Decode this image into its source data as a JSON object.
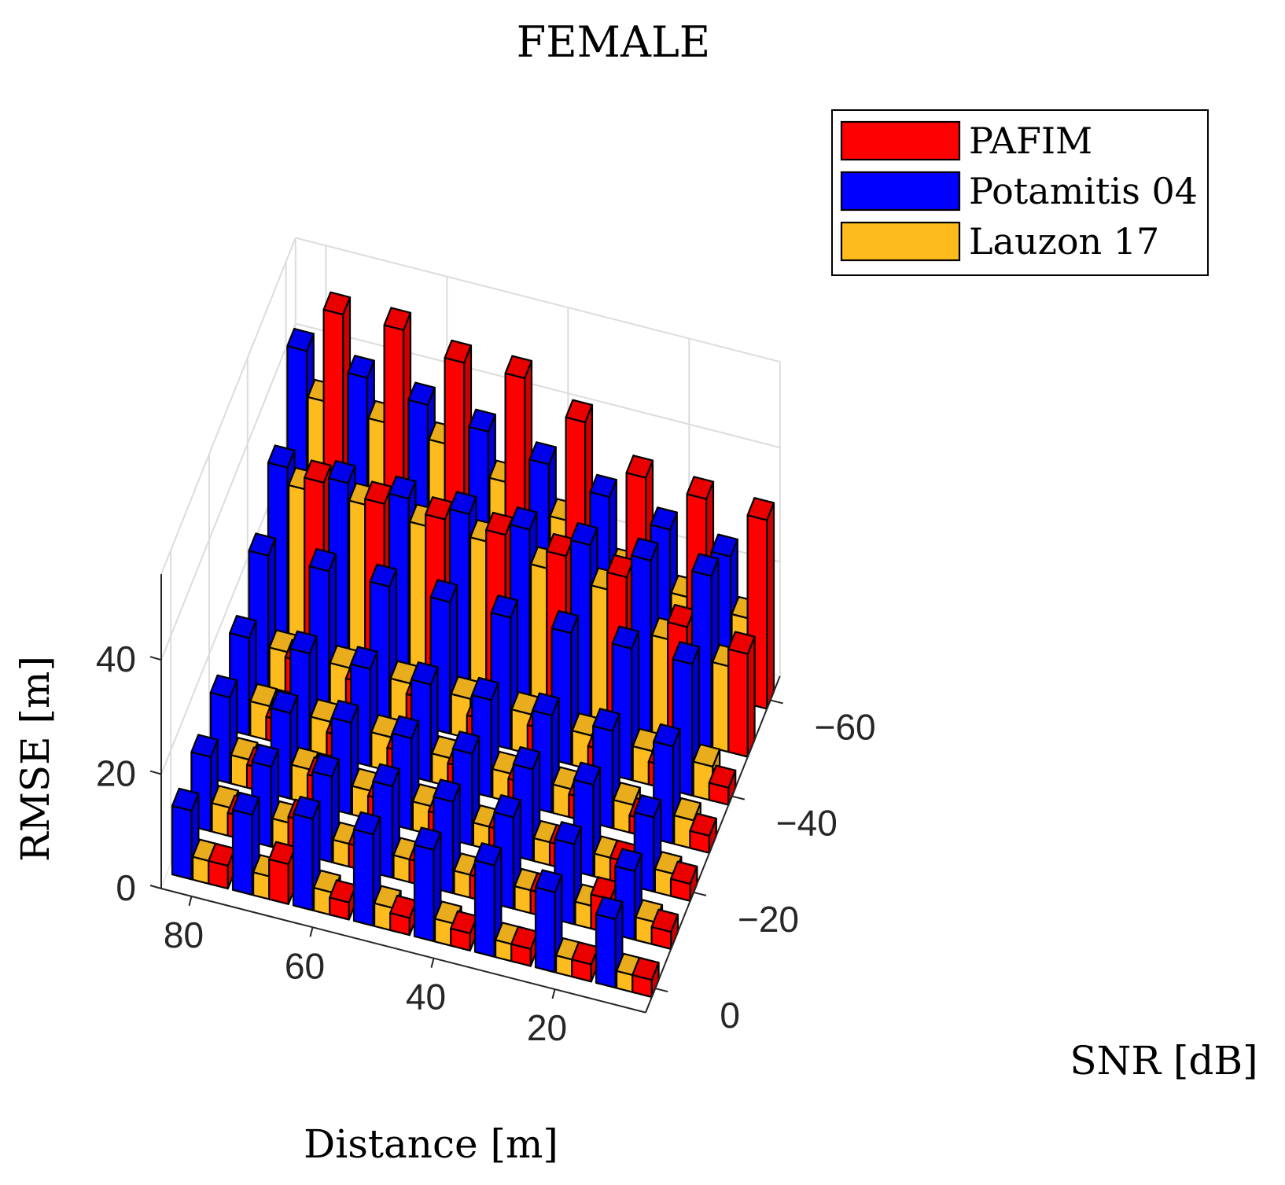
{
  "chart_data": {
    "type": "bar3d",
    "title": "FEMALE",
    "xlabel": "Distance [m]",
    "ylabel": "SNR [dB]",
    "zlabel": "RMSE [m]",
    "distance_ticks": [
      80,
      60,
      40,
      20
    ],
    "snr_ticks": [
      -60,
      -40,
      -20,
      0
    ],
    "rmse_ticks": [
      0,
      20,
      40
    ],
    "zlim": [
      0,
      55
    ],
    "distances": [
      80,
      70,
      60,
      50,
      40,
      30,
      20,
      10
    ],
    "snrs": [
      0,
      -10,
      -20,
      -30,
      -40,
      -50,
      -60
    ],
    "grid": true,
    "legend_position": "top-right",
    "series": [
      {
        "name": "PAFIM",
        "color": "#ff0000",
        "values": [
          [
            4,
            7,
            3,
            3,
            3,
            3,
            3,
            3
          ],
          [
            4,
            6,
            4,
            4,
            4,
            4,
            6,
            3
          ],
          [
            4,
            5,
            4,
            4,
            4,
            4,
            4,
            3
          ],
          [
            4,
            4,
            4,
            4,
            4,
            4,
            3,
            3
          ],
          [
            6,
            5,
            5,
            4,
            5,
            4,
            4,
            3
          ],
          [
            29,
            28,
            28,
            28,
            27,
            26,
            20,
            18
          ],
          [
            50,
            50,
            47,
            47,
            42,
            35,
            34,
            33
          ]
        ]
      },
      {
        "name": "Potamitis 04",
        "color": "#0000ff",
        "values": [
          [
            12,
            14,
            16,
            16,
            16,
            16,
            14,
            12
          ],
          [
            13,
            14,
            15,
            16,
            16,
            16,
            14,
            12
          ],
          [
            15,
            15,
            16,
            16,
            16,
            16,
            16,
            13
          ],
          [
            17,
            17,
            17,
            17,
            17,
            17,
            17,
            17
          ],
          [
            23,
            23,
            23,
            23,
            23,
            23,
            23,
            23
          ],
          [
            30,
            30,
            30,
            30,
            30,
            30,
            30,
            30
          ],
          [
            42,
            40,
            38,
            36,
            33,
            30,
            27,
            25
          ]
        ]
      },
      {
        "name": "Lauzon 17",
        "color": "#fdbb1e",
        "values": [
          [
            4,
            4,
            4,
            4,
            4,
            3,
            3,
            3
          ],
          [
            5,
            5,
            4,
            4,
            4,
            4,
            4,
            4
          ],
          [
            5,
            6,
            5,
            5,
            4,
            4,
            4,
            4
          ],
          [
            6,
            6,
            6,
            5,
            5,
            5,
            5,
            5
          ],
          [
            7,
            7,
            7,
            7,
            7,
            6,
            6,
            6
          ],
          [
            27,
            27,
            26,
            26,
            24,
            23,
            17,
            15
          ],
          [
            34,
            33,
            32,
            28,
            24,
            18,
            16,
            15
          ]
        ]
      }
    ]
  }
}
